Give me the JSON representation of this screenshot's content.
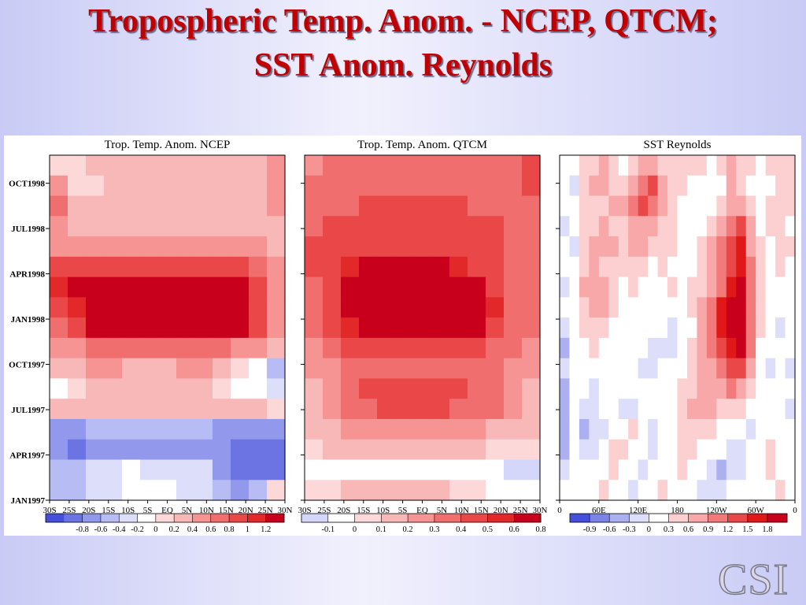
{
  "slide": {
    "title_line1": "Tropospheric Temp. Anom. - NCEP, QTCM;",
    "title_line2": "SST Anom. Reynolds",
    "logo": "CSI"
  },
  "chart_data": [
    {
      "type": "heatmap",
      "title": "Trop. Temp. Anom.  NCEP",
      "x_ticks": [
        "30S",
        "25S",
        "20S",
        "15S",
        "10S",
        "5S",
        "EQ",
        "5N",
        "10N",
        "15N",
        "20N",
        "25N",
        "30N"
      ],
      "y_ticks": [
        "JAN1997",
        "APR1997",
        "JUL1997",
        "OCT1997",
        "JAN1998",
        "APR1998",
        "JUL1998",
        "OCT1998"
      ],
      "colorbar_ticks": [
        "-0.8",
        "-0.6",
        "-0.4",
        "-0.2",
        "0",
        "0.2",
        "0.4",
        "0.6",
        "0.8",
        "1",
        "1.2"
      ],
      "colorbar_colors": [
        "#4450dc",
        "#6c74e4",
        "#9298ec",
        "#b8bcf4",
        "#dcdefa",
        "#ffffff",
        "#fcd8d8",
        "#f8b8b8",
        "#f69494",
        "#f06e6e",
        "#ea4848",
        "#e22828",
        "#c8001c"
      ],
      "colorbar_range": [
        -0.9,
        1.3
      ],
      "value_grid": [
        [
          0.2,
          0.2,
          0.3,
          0.3,
          0.3,
          0.3,
          0.3,
          0.3,
          0.3,
          0.3,
          0.3,
          0.3,
          0.5
        ],
        [
          0.6,
          0.2,
          0.2,
          0.3,
          0.3,
          0.3,
          0.3,
          0.3,
          0.3,
          0.3,
          0.3,
          0.3,
          0.6
        ],
        [
          0.7,
          0.4,
          0.4,
          0.4,
          0.4,
          0.4,
          0.4,
          0.4,
          0.4,
          0.4,
          0.4,
          0.4,
          0.6
        ],
        [
          0.5,
          0.4,
          0.4,
          0.4,
          0.3,
          0.3,
          0.3,
          0.4,
          0.3,
          0.3,
          0.4,
          0.4,
          0.4
        ],
        [
          0.6,
          0.5,
          0.5,
          0.5,
          0.5,
          0.5,
          0.5,
          0.5,
          0.5,
          0.5,
          0.5,
          0.5,
          0.4
        ],
        [
          0.9,
          0.9,
          0.8,
          0.8,
          0.8,
          0.8,
          0.8,
          0.8,
          0.8,
          0.8,
          0.8,
          0.7,
          0.5
        ],
        [
          1.0,
          1.3,
          1.3,
          1.3,
          1.3,
          1.3,
          1.2,
          1.3,
          1.3,
          1.3,
          1.2,
          0.9,
          0.6
        ],
        [
          0.8,
          1.1,
          1.3,
          1.3,
          1.3,
          1.3,
          1.3,
          1.3,
          1.3,
          1.3,
          1.2,
          0.9,
          0.5
        ],
        [
          0.7,
          0.8,
          1.2,
          1.3,
          1.3,
          1.3,
          1.3,
          1.3,
          1.3,
          1.3,
          1.2,
          0.8,
          0.5
        ],
        [
          0.6,
          0.6,
          0.7,
          0.7,
          0.7,
          0.7,
          0.7,
          0.7,
          0.7,
          0.7,
          0.6,
          0.5,
          0.3
        ],
        [
          0.4,
          0.4,
          0.5,
          0.5,
          0.4,
          0.3,
          0.4,
          0.5,
          0.5,
          0.4,
          0.2,
          0.0,
          -0.3
        ],
        [
          0.1,
          0.2,
          0.3,
          0.3,
          0.3,
          0.3,
          0.3,
          0.3,
          0.3,
          0.2,
          0.1,
          0.0,
          -0.1
        ],
        [
          0.3,
          0.3,
          0.4,
          0.4,
          0.4,
          0.4,
          0.4,
          0.4,
          0.4,
          0.4,
          0.3,
          0.3,
          0.2
        ],
        [
          -0.4,
          -0.4,
          -0.3,
          -0.3,
          -0.3,
          -0.3,
          -0.3,
          -0.3,
          -0.3,
          -0.4,
          -0.4,
          -0.5,
          -0.5
        ],
        [
          -0.5,
          -0.7,
          -0.5,
          -0.5,
          -0.4,
          -0.4,
          -0.4,
          -0.4,
          -0.5,
          -0.5,
          -0.6,
          -0.6,
          -0.6
        ],
        [
          -0.3,
          -0.3,
          -0.2,
          -0.1,
          0.0,
          -0.1,
          -0.1,
          -0.2,
          -0.2,
          -0.4,
          -0.6,
          -0.6,
          -0.6
        ],
        [
          -0.3,
          -0.3,
          -0.2,
          -0.1,
          0.0,
          0.0,
          0.0,
          -0.1,
          -0.2,
          -0.3,
          -0.4,
          -0.3,
          0.2
        ]
      ]
    },
    {
      "type": "heatmap",
      "title": "Trop. Temp. Anom.  QTCM",
      "x_ticks": [
        "30S",
        "25S",
        "20S",
        "15S",
        "10S",
        "5S",
        "EQ",
        "5N",
        "10N",
        "15N",
        "20N",
        "25N",
        "30N"
      ],
      "y_ticks": [
        "JAN1997",
        "APR1997",
        "JUL1997",
        "OCT1997",
        "JAN1998",
        "APR1998",
        "JUL1998",
        "OCT1998"
      ],
      "colorbar_ticks": [
        "-0.1",
        "0",
        "0.1",
        "0.2",
        "0.3",
        "0.4",
        "0.5",
        "0.6",
        "0.8"
      ],
      "colorbar_colors": [
        "#d4d6fa",
        "#ffffff",
        "#fcd8d8",
        "#f8b8b8",
        "#f69494",
        "#f06e6e",
        "#ea4848",
        "#e22828",
        "#c8001c"
      ],
      "colorbar_range": [
        -0.15,
        0.9
      ],
      "value_grid": [
        [
          0.4,
          0.45,
          0.5,
          0.5,
          0.5,
          0.5,
          0.5,
          0.5,
          0.5,
          0.5,
          0.5,
          0.5,
          0.6
        ],
        [
          0.45,
          0.45,
          0.5,
          0.5,
          0.5,
          0.5,
          0.5,
          0.5,
          0.5,
          0.5,
          0.5,
          0.5,
          0.55
        ],
        [
          0.5,
          0.5,
          0.5,
          0.55,
          0.6,
          0.6,
          0.6,
          0.6,
          0.55,
          0.5,
          0.5,
          0.5,
          0.5
        ],
        [
          0.5,
          0.55,
          0.6,
          0.6,
          0.6,
          0.6,
          0.6,
          0.6,
          0.6,
          0.6,
          0.55,
          0.5,
          0.5
        ],
        [
          0.55,
          0.6,
          0.6,
          0.6,
          0.6,
          0.6,
          0.6,
          0.6,
          0.6,
          0.6,
          0.6,
          0.5,
          0.5
        ],
        [
          0.55,
          0.6,
          0.7,
          0.8,
          0.8,
          0.8,
          0.8,
          0.8,
          0.7,
          0.6,
          0.55,
          0.5,
          0.5
        ],
        [
          0.5,
          0.6,
          0.8,
          0.9,
          0.9,
          0.9,
          0.9,
          0.9,
          0.9,
          0.8,
          0.6,
          0.5,
          0.45
        ],
        [
          0.5,
          0.6,
          0.8,
          0.9,
          0.9,
          0.9,
          0.9,
          0.9,
          0.9,
          0.9,
          0.7,
          0.5,
          0.45
        ],
        [
          0.45,
          0.55,
          0.7,
          0.9,
          0.9,
          0.9,
          0.9,
          0.9,
          0.9,
          0.8,
          0.6,
          0.5,
          0.45
        ],
        [
          0.4,
          0.5,
          0.6,
          0.6,
          0.6,
          0.6,
          0.6,
          0.6,
          0.6,
          0.6,
          0.5,
          0.45,
          0.4
        ],
        [
          0.35,
          0.4,
          0.45,
          0.5,
          0.5,
          0.5,
          0.5,
          0.5,
          0.5,
          0.5,
          0.45,
          0.4,
          0.35
        ],
        [
          0.3,
          0.4,
          0.5,
          0.55,
          0.55,
          0.55,
          0.55,
          0.55,
          0.55,
          0.5,
          0.45,
          0.4,
          0.3
        ],
        [
          0.3,
          0.4,
          0.45,
          0.5,
          0.55,
          0.55,
          0.55,
          0.55,
          0.5,
          0.5,
          0.45,
          0.4,
          0.3
        ],
        [
          0.25,
          0.3,
          0.35,
          0.4,
          0.4,
          0.4,
          0.4,
          0.4,
          0.4,
          0.35,
          0.3,
          0.3,
          0.25
        ],
        [
          0.15,
          0.2,
          0.25,
          0.25,
          0.25,
          0.25,
          0.25,
          0.25,
          0.25,
          0.2,
          0.15,
          0.15,
          0.15
        ],
        [
          0.05,
          0.05,
          0.05,
          0.0,
          0.0,
          0.0,
          0.0,
          0.0,
          0.0,
          0.0,
          0.0,
          -0.05,
          -0.05
        ],
        [
          0.1,
          0.15,
          0.2,
          0.2,
          0.2,
          0.2,
          0.2,
          0.2,
          0.15,
          0.1,
          0.05,
          0.05,
          0.05
        ]
      ]
    },
    {
      "type": "heatmap",
      "title": "SST Reynolds",
      "x_ticks": [
        "0",
        "60E",
        "120E",
        "180",
        "120W",
        "60W",
        "0"
      ],
      "y_ticks": [
        "JAN1997",
        "APR1997",
        "JUL1997",
        "OCT1997",
        "JAN1998",
        "APR1998",
        "JUL1998",
        "OCT1998"
      ],
      "colorbar_ticks": [
        "-0.9",
        "-0.6",
        "-0.3",
        "0",
        "0.3",
        "0.6",
        "0.9",
        "1.2",
        "1.5",
        "1.8"
      ],
      "colorbar_colors": [
        "#4450dc",
        "#7c82e6",
        "#acb0f0",
        "#dcdefa",
        "#ffffff",
        "#fcd0d0",
        "#f8a8a8",
        "#f27a7a",
        "#ea4848",
        "#e01818",
        "#c8001c"
      ],
      "colorbar_range": [
        -1.2,
        2.1
      ],
      "value_grid": [
        [
          0.0,
          0.0,
          0.3,
          0.5,
          0.6,
          0.4,
          0.2,
          0.3,
          0.6,
          0.8,
          0.5,
          0.3,
          0.4,
          0.4,
          0.3,
          0.2,
          0.3,
          0.6,
          0.5,
          0.3,
          0.2,
          0.3,
          0.4,
          0.5
        ],
        [
          0.0,
          -0.2,
          0.4,
          0.6,
          0.7,
          0.5,
          0.5,
          0.7,
          1.0,
          1.2,
          0.6,
          0.3,
          0.3,
          0.2,
          0.1,
          0.0,
          0.2,
          0.6,
          0.5,
          0.2,
          0.1,
          0.2,
          0.4,
          0.5
        ],
        [
          0.0,
          0.0,
          0.5,
          0.5,
          0.4,
          0.6,
          0.8,
          0.9,
          1.2,
          1.0,
          0.6,
          0.4,
          0.2,
          0.1,
          0.0,
          0.2,
          0.5,
          0.8,
          0.7,
          0.3,
          0.2,
          0.3,
          0.4,
          0.3
        ],
        [
          -0.2,
          0.0,
          0.3,
          0.5,
          0.6,
          0.5,
          0.4,
          0.7,
          0.8,
          0.7,
          0.5,
          0.3,
          0.1,
          0.0,
          0.2,
          0.4,
          0.7,
          1.1,
          1.2,
          0.6,
          0.2,
          0.3,
          0.3,
          0.2
        ],
        [
          0.0,
          -0.1,
          0.4,
          0.7,
          0.8,
          0.6,
          0.5,
          0.6,
          0.6,
          0.5,
          0.5,
          0.4,
          0.2,
          0.1,
          0.3,
          0.6,
          0.9,
          1.2,
          1.6,
          0.8,
          0.3,
          0.2,
          0.4,
          0.3
        ],
        [
          0.0,
          0.0,
          0.5,
          0.6,
          0.5,
          0.4,
          0.3,
          0.4,
          0.3,
          0.2,
          0.3,
          0.2,
          0.0,
          0.1,
          0.4,
          0.7,
          1.0,
          1.3,
          1.5,
          0.9,
          0.3,
          0.0,
          0.3,
          0.2
        ],
        [
          -0.1,
          0.0,
          0.6,
          0.7,
          0.6,
          0.4,
          0.2,
          0.3,
          0.2,
          0.0,
          0.2,
          0.3,
          0.2,
          0.3,
          0.5,
          0.8,
          1.1,
          1.6,
          1.8,
          1.0,
          0.4,
          0.2,
          0.1,
          0.1
        ],
        [
          0.0,
          0.0,
          0.5,
          0.8,
          0.6,
          0.4,
          0.2,
          0.1,
          0.2,
          0.1,
          0.2,
          0.2,
          0.1,
          0.3,
          0.6,
          1.0,
          1.5,
          1.8,
          1.9,
          1.1,
          0.3,
          0.1,
          0.0,
          0.2
        ],
        [
          -0.2,
          0.0,
          0.3,
          0.5,
          0.4,
          0.2,
          0.0,
          0.0,
          0.1,
          0.2,
          0.0,
          -0.2,
          0.0,
          0.2,
          0.6,
          1.1,
          1.6,
          1.9,
          1.9,
          1.0,
          0.3,
          0.0,
          -0.1,
          0.0
        ],
        [
          -0.4,
          0.0,
          0.2,
          0.3,
          0.2,
          0.0,
          0.1,
          0.2,
          0.0,
          -0.1,
          -0.3,
          -0.2,
          0.0,
          0.3,
          0.6,
          0.9,
          1.3,
          1.6,
          1.8,
          0.9,
          0.2,
          0.0,
          0.0,
          0.0
        ],
        [
          -0.3,
          0.0,
          0.1,
          0.0,
          0.1,
          0.2,
          0.0,
          0.0,
          -0.2,
          -0.3,
          0.0,
          0.0,
          0.2,
          0.4,
          0.6,
          0.8,
          1.0,
          1.2,
          1.3,
          0.6,
          0.1,
          -0.2,
          0.0,
          -0.2
        ],
        [
          -0.5,
          0.0,
          0.0,
          -0.1,
          0.0,
          0.1,
          0.2,
          0.0,
          0.0,
          0.0,
          0.2,
          0.1,
          0.3,
          0.5,
          0.6,
          0.7,
          0.8,
          0.9,
          0.8,
          0.3,
          0.0,
          0.0,
          0.1,
          0.0
        ],
        [
          -0.6,
          0.0,
          -0.3,
          -0.2,
          0.0,
          0.0,
          -0.1,
          -0.2,
          0.0,
          0.1,
          0.0,
          0.2,
          0.4,
          0.6,
          0.7,
          0.7,
          0.5,
          0.4,
          0.3,
          0.0,
          0.0,
          0.1,
          0.0,
          -0.2
        ],
        [
          -0.4,
          0.0,
          -0.4,
          -0.3,
          -0.2,
          0.0,
          0.2,
          0.3,
          0.0,
          -0.2,
          0.0,
          0.1,
          0.4,
          0.5,
          0.4,
          0.3,
          0.1,
          0.0,
          0.0,
          -0.1,
          0.0,
          0.2,
          0.1,
          0.0
        ],
        [
          -0.6,
          0.0,
          -0.2,
          -0.1,
          0.0,
          0.3,
          0.4,
          0.2,
          0.0,
          -0.1,
          0.0,
          0.0,
          0.3,
          0.3,
          0.2,
          0.1,
          0.0,
          -0.3,
          -0.2,
          0.0,
          0.1,
          0.3,
          0.2,
          0.0
        ],
        [
          -0.3,
          0.0,
          0.0,
          0.1,
          0.2,
          0.3,
          0.2,
          0.0,
          -0.1,
          0.0,
          0.1,
          0.2,
          0.3,
          0.2,
          0.0,
          -0.2,
          -0.4,
          -0.3,
          -0.1,
          0.0,
          0.0,
          0.3,
          0.2,
          0.1
        ],
        [
          0.0,
          0.0,
          0.1,
          0.2,
          0.3,
          0.2,
          0.0,
          -0.2,
          0.0,
          0.2,
          0.3,
          0.2,
          0.1,
          0.0,
          -0.2,
          -0.3,
          -0.2,
          0.0,
          0.1,
          0.2,
          0.1,
          0.2,
          0.3,
          0.2
        ]
      ]
    }
  ]
}
